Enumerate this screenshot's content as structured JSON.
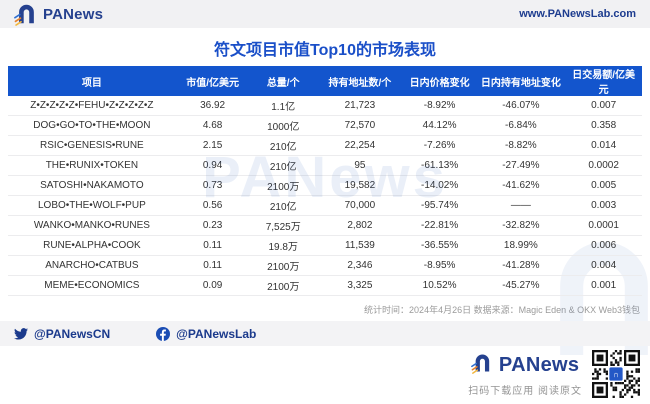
{
  "header": {
    "brand": "PANews",
    "site": "www.PANewsLab.com"
  },
  "title": "符文项目市值Top10的市场表现",
  "watermark": "PANews",
  "chart_data": {
    "type": "table",
    "title": "符文项目市值Top10的市场表现",
    "columns": [
      "项目",
      "市值/亿美元",
      "总量/个",
      "持有地址数/个",
      "日内价格变化",
      "日内持有地址变化",
      "日交易额/亿美元"
    ],
    "rows": [
      [
        "Z•Z•Z•Z•Z•FEHU•Z•Z•Z•Z•Z",
        "36.92",
        "1.1亿",
        "21,723",
        "-8.92%",
        "-46.07%",
        "0.007"
      ],
      [
        "DOG•GO•TO•THE•MOON",
        "4.68",
        "1000亿",
        "72,570",
        "44.12%",
        "-6.84%",
        "0.358"
      ],
      [
        "RSIC•GENESIS•RUNE",
        "2.15",
        "210亿",
        "22,254",
        "-7.26%",
        "-8.82%",
        "0.014"
      ],
      [
        "THE•RUNIX•TOKEN",
        "0.94",
        "210亿",
        "95",
        "-61.13%",
        "-27.49%",
        "0.0002"
      ],
      [
        "SATOSHI•NAKAMOTO",
        "0.73",
        "2100万",
        "19,582",
        "-14.02%",
        "-41.62%",
        "0.005"
      ],
      [
        "LOBO•THE•WOLF•PUP",
        "0.56",
        "210亿",
        "70,000",
        "-95.74%",
        "——",
        "0.003"
      ],
      [
        "WANKO•MANKO•RUNES",
        "0.23",
        "7,525万",
        "2,802",
        "-22.81%",
        "-32.82%",
        "0.0001"
      ],
      [
        "RUNE•ALPHA•COOK",
        "0.11",
        "19.8万",
        "11,539",
        "-36.55%",
        "18.99%",
        "0.006"
      ],
      [
        "ANARCHO•CATBUS",
        "0.11",
        "2100万",
        "2,346",
        "-8.95%",
        "-41.28%",
        "0.004"
      ],
      [
        "MEME•ECONOMICS",
        "0.09",
        "2100万",
        "3,325",
        "10.52%",
        "-45.27%",
        "0.001"
      ]
    ],
    "stat_date": "2024年4月26日",
    "source": "Magic Eden & OKX Web3钱包"
  },
  "footnote": {
    "time_label": "统计时间：",
    "time": "2024年4月26日",
    "source_label": " 数据来源：",
    "source": "Magic Eden & OKX Web3钱包"
  },
  "social": {
    "twitter_handle": "@PANewsCN",
    "facebook_handle": "@PANewsLab"
  },
  "footer": {
    "brand": "PANews",
    "caption": "扫码下载应用 阅读原文"
  },
  "colors": {
    "table_header_blue": "#1355cd",
    "title_blue": "#1a4fc8",
    "brand_navy": "#25418f",
    "topbar_gray": "#f1f1f3"
  }
}
